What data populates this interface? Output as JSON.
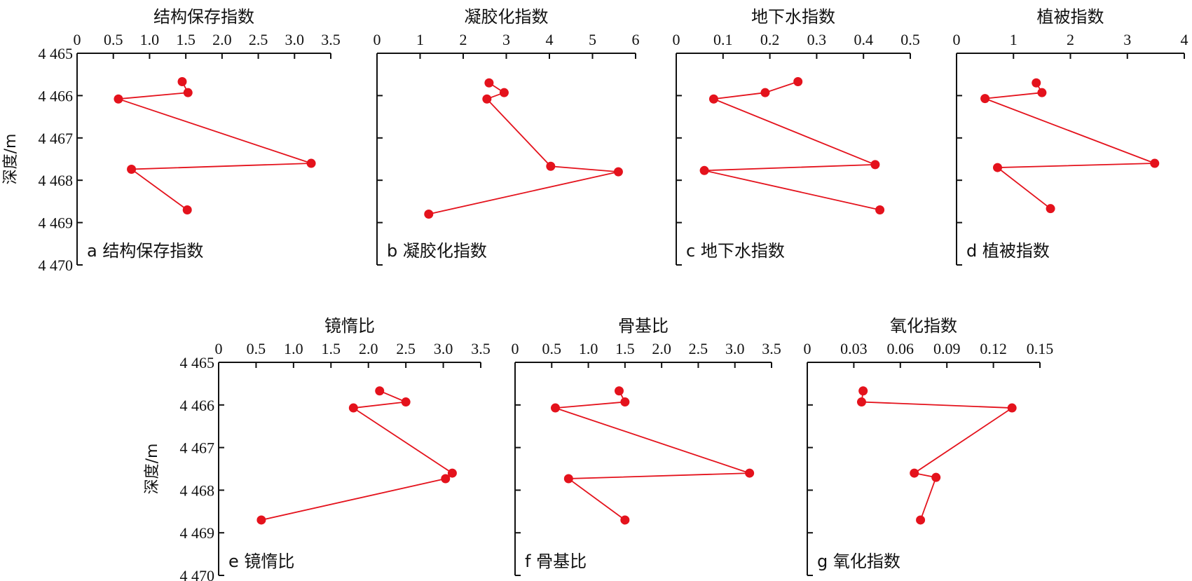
{
  "chart_data": [
    {
      "type": "line",
      "title": "结构保存指数",
      "label": "a 结构保存指数",
      "ylabel": "深度/m",
      "xticks": [
        "0",
        "0.5",
        "1.0",
        "1.5",
        "2.0",
        "2.5",
        "3.0",
        "3.5"
      ],
      "xlim": [
        0,
        3.5
      ],
      "yticks": [
        "4 465",
        "4 466",
        "4 467",
        "4 468",
        "4 469",
        "4 470"
      ],
      "ylim": [
        4465,
        4470
      ],
      "points": [
        {
          "x": 1.45,
          "y": 4465.67
        },
        {
          "x": 1.53,
          "y": 4465.93
        },
        {
          "x": 0.57,
          "y": 4466.08
        },
        {
          "x": 3.23,
          "y": 4467.6
        },
        {
          "x": 0.75,
          "y": 4467.74
        },
        {
          "x": 1.52,
          "y": 4468.7
        }
      ]
    },
    {
      "type": "line",
      "title": "凝胶化指数",
      "label": "b 凝胶化指数",
      "ylabel": "",
      "xticks": [
        "0",
        "1",
        "2",
        "3",
        "4",
        "5",
        "6"
      ],
      "xlim": [
        0,
        6
      ],
      "yticks": [],
      "ylim": [
        4465,
        4470
      ],
      "points": [
        {
          "x": 2.6,
          "y": 4465.7
        },
        {
          "x": 2.95,
          "y": 4465.93
        },
        {
          "x": 2.55,
          "y": 4466.08
        },
        {
          "x": 4.03,
          "y": 4467.67
        },
        {
          "x": 5.6,
          "y": 4467.8
        },
        {
          "x": 1.2,
          "y": 4468.8
        }
      ]
    },
    {
      "type": "line",
      "title": "地下水指数",
      "label": "c 地下水指数",
      "ylabel": "",
      "xticks": [
        "0",
        "0.1",
        "0.2",
        "0.3",
        "0.4",
        "0.5"
      ],
      "xlim": [
        0,
        0.5
      ],
      "yticks": [],
      "ylim": [
        4465,
        4470
      ],
      "points": [
        {
          "x": 0.26,
          "y": 4465.67
        },
        {
          "x": 0.19,
          "y": 4465.93
        },
        {
          "x": 0.08,
          "y": 4466.08
        },
        {
          "x": 0.425,
          "y": 4467.63
        },
        {
          "x": 0.06,
          "y": 4467.77
        },
        {
          "x": 0.435,
          "y": 4468.7
        }
      ]
    },
    {
      "type": "line",
      "title": "植被指数",
      "label": "d 植被指数",
      "ylabel": "",
      "xticks": [
        "0",
        "1",
        "2",
        "3",
        "4"
      ],
      "xlim": [
        0,
        4
      ],
      "yticks": [],
      "ylim": [
        4465,
        4470
      ],
      "points": [
        {
          "x": 1.4,
          "y": 4465.7
        },
        {
          "x": 1.5,
          "y": 4465.93
        },
        {
          "x": 0.5,
          "y": 4466.07
        },
        {
          "x": 3.48,
          "y": 4467.6
        },
        {
          "x": 0.72,
          "y": 4467.7
        },
        {
          "x": 1.65,
          "y": 4468.67
        }
      ]
    },
    {
      "type": "line",
      "title": "镜惰比",
      "label": "e 镜惰比",
      "ylabel": "深度/m",
      "xticks": [
        "0",
        "0.5",
        "1.0",
        "1.5",
        "2.0",
        "2.5",
        "3.0",
        "3.5"
      ],
      "xlim": [
        0,
        3.5
      ],
      "yticks": [
        "4 465",
        "4 466",
        "4 467",
        "4 468",
        "4 469",
        "4 470"
      ],
      "ylim": [
        4465,
        4470
      ],
      "points": [
        {
          "x": 2.15,
          "y": 4465.67
        },
        {
          "x": 2.5,
          "y": 4465.93
        },
        {
          "x": 1.8,
          "y": 4466.07
        },
        {
          "x": 3.12,
          "y": 4467.6
        },
        {
          "x": 3.03,
          "y": 4467.73
        },
        {
          "x": 0.57,
          "y": 4468.7
        }
      ]
    },
    {
      "type": "line",
      "title": "骨基比",
      "label": "f 骨基比",
      "ylabel": "",
      "xticks": [
        "0",
        "0.5",
        "1.0",
        "1.5",
        "2.0",
        "2.5",
        "3.0",
        "3.5"
      ],
      "xlim": [
        0,
        3.5
      ],
      "yticks": [],
      "ylim": [
        4465,
        4470
      ],
      "points": [
        {
          "x": 1.42,
          "y": 4465.67
        },
        {
          "x": 1.5,
          "y": 4465.93
        },
        {
          "x": 0.55,
          "y": 4466.07
        },
        {
          "x": 3.2,
          "y": 4467.6
        },
        {
          "x": 0.73,
          "y": 4467.73
        },
        {
          "x": 1.5,
          "y": 4468.7
        }
      ]
    },
    {
      "type": "line",
      "title": "氧化指数",
      "label": "g 氧化指数",
      "ylabel": "",
      "xticks": [
        "0",
        "0.03",
        "0.06",
        "0.09",
        "0.12",
        "0.15"
      ],
      "xlim": [
        0,
        0.15
      ],
      "yticks": [],
      "ylim": [
        4465,
        4470
      ],
      "points": [
        {
          "x": 0.036,
          "y": 4465.67
        },
        {
          "x": 0.035,
          "y": 4465.93
        },
        {
          "x": 0.132,
          "y": 4466.07
        },
        {
          "x": 0.069,
          "y": 4467.6
        },
        {
          "x": 0.083,
          "y": 4467.7
        },
        {
          "x": 0.073,
          "y": 4468.7
        }
      ]
    }
  ]
}
